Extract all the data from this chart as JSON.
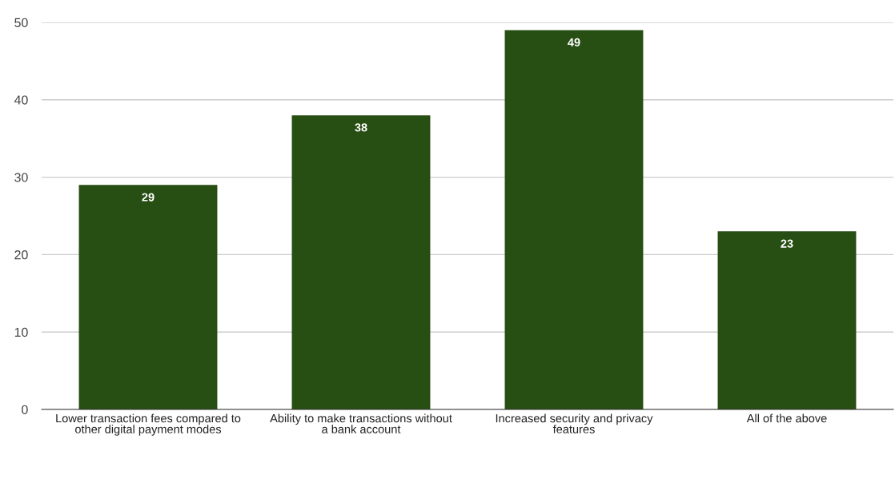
{
  "chart_data": {
    "type": "bar",
    "categories": [
      "Lower transaction fees compared to other digital payment modes",
      "Ability to make transactions without a bank account",
      "Increased security and privacy features",
      "All of the above"
    ],
    "values": [
      29,
      38,
      49,
      23
    ],
    "color": "#274e13",
    "ylim": [
      0,
      50
    ],
    "yticks": [
      0,
      10,
      20,
      30,
      40,
      50
    ],
    "grid": "y",
    "data_labels": true,
    "legend": false
  }
}
